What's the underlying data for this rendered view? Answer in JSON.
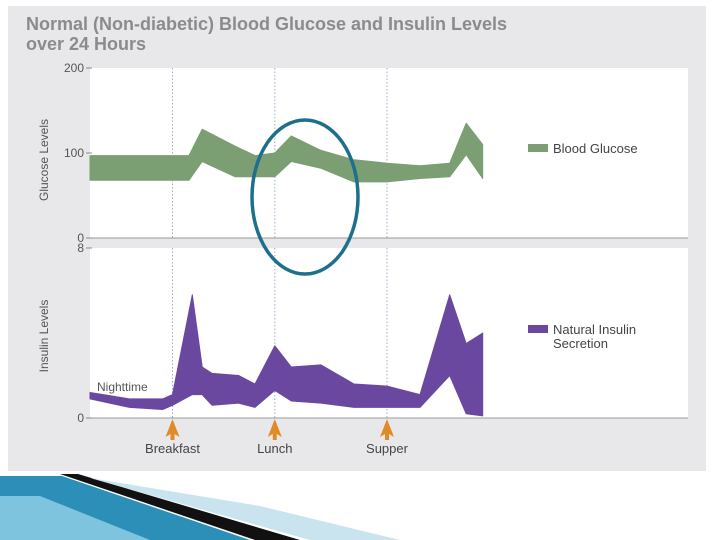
{
  "title_lines": [
    "Normal (Non-diabetic) Blood Glucose and Insulin Levels",
    "over 24 Hours"
  ],
  "colors": {
    "glucose": "#7b9e73",
    "insulin": "#6a48a0",
    "arrow": "#e08a2a",
    "highlight_ellipse": "#1d6f8c",
    "panel_bg": "#e8e8ea"
  },
  "chart_data": [
    {
      "type": "area",
      "ylabel": "Glucose Levels",
      "ylim": [
        0,
        200
      ],
      "yticks": [
        "0",
        "100",
        "200"
      ],
      "series": [
        {
          "name": "Blood Glucose",
          "x": [
            0,
            2.5,
            3.0,
            3.4,
            4.4,
            5.0,
            5.6,
            6.1,
            7.0,
            8.0,
            9.0,
            10.0,
            10.9,
            11.4,
            11.9
          ],
          "upper": [
            97,
            97,
            97,
            128,
            108,
            97,
            100,
            120,
            103,
            92,
            88,
            85,
            88,
            135,
            110
          ],
          "lower": [
            68,
            68,
            68,
            90,
            72,
            72,
            72,
            90,
            82,
            66,
            66,
            70,
            72,
            98,
            70
          ]
        }
      ],
      "legend_position": "right",
      "grid": false
    },
    {
      "type": "area",
      "ylabel": "Insulin Levels",
      "ylim": [
        0,
        8
      ],
      "yticks": [
        "0",
        "8"
      ],
      "series": [
        {
          "name": "Natural Insulin Secretion",
          "x": [
            0,
            1.2,
            2.2,
            2.5,
            3.1,
            3.4,
            3.7,
            4.5,
            5.0,
            5.6,
            6.1,
            7.0,
            8.0,
            9.0,
            10.0,
            10.9,
            11.4,
            11.9
          ],
          "upper": [
            1.2,
            0.9,
            0.9,
            1.1,
            5.8,
            2.4,
            2.1,
            2.0,
            1.6,
            3.4,
            2.4,
            2.5,
            1.6,
            1.5,
            1.1,
            5.8,
            3.5,
            4.0
          ],
          "lower": [
            0.9,
            0.5,
            0.4,
            0.6,
            1.1,
            1.1,
            0.6,
            0.7,
            0.5,
            1.3,
            0.8,
            0.7,
            0.5,
            0.5,
            0.5,
            2.0,
            0.2,
            0.1
          ]
        }
      ],
      "annotations": [
        "Nighttime"
      ],
      "legend_position": "right",
      "grid": false
    }
  ],
  "legend": {
    "glucose_label": "Blood Glucose",
    "insulin_label_line1": "Natural Insulin",
    "insulin_label_line2": "Secretion"
  },
  "meals": [
    {
      "label": "Breakfast",
      "x": 2.5
    },
    {
      "label": "Lunch",
      "x": 5.6
    },
    {
      "label": "Supper",
      "x": 9.0
    }
  ]
}
